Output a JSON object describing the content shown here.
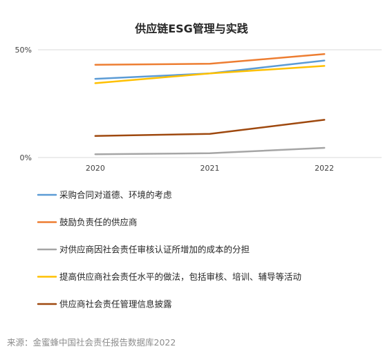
{
  "chart_data": {
    "type": "line",
    "title": "供应链ESG管理与实践",
    "xlabel": "",
    "ylabel": "",
    "x": [
      "2020",
      "2021",
      "2022"
    ],
    "ylim": [
      0,
      50
    ],
    "yticks": [
      "0%",
      "50%"
    ],
    "grid": "horizontal",
    "legend_position": "bottom",
    "series": [
      {
        "name": "采购合同对道德、环境的考虑",
        "color": "#5b9bd5",
        "values": [
          36.5,
          39,
          45
        ]
      },
      {
        "name": "鼓励负责任的供应商",
        "color": "#ed7d31",
        "values": [
          43,
          43.5,
          48
        ]
      },
      {
        "name": "对供应商因社会责任审核认证所增加的成本的分担",
        "color": "#a5a5a5",
        "values": [
          1.5,
          2,
          4.5
        ]
      },
      {
        "name": "提高供应商社会责任水平的做法，包括审核、培训、辅导等活动",
        "color": "#ffc000",
        "values": [
          34.5,
          39,
          42.5
        ]
      },
      {
        "name": "供应商社会责任管理信息披露",
        "color": "#9e480e",
        "values": [
          10,
          11,
          17.5
        ]
      }
    ],
    "source": "来源：金蜜蜂中国社会责任报告数据库2022"
  }
}
